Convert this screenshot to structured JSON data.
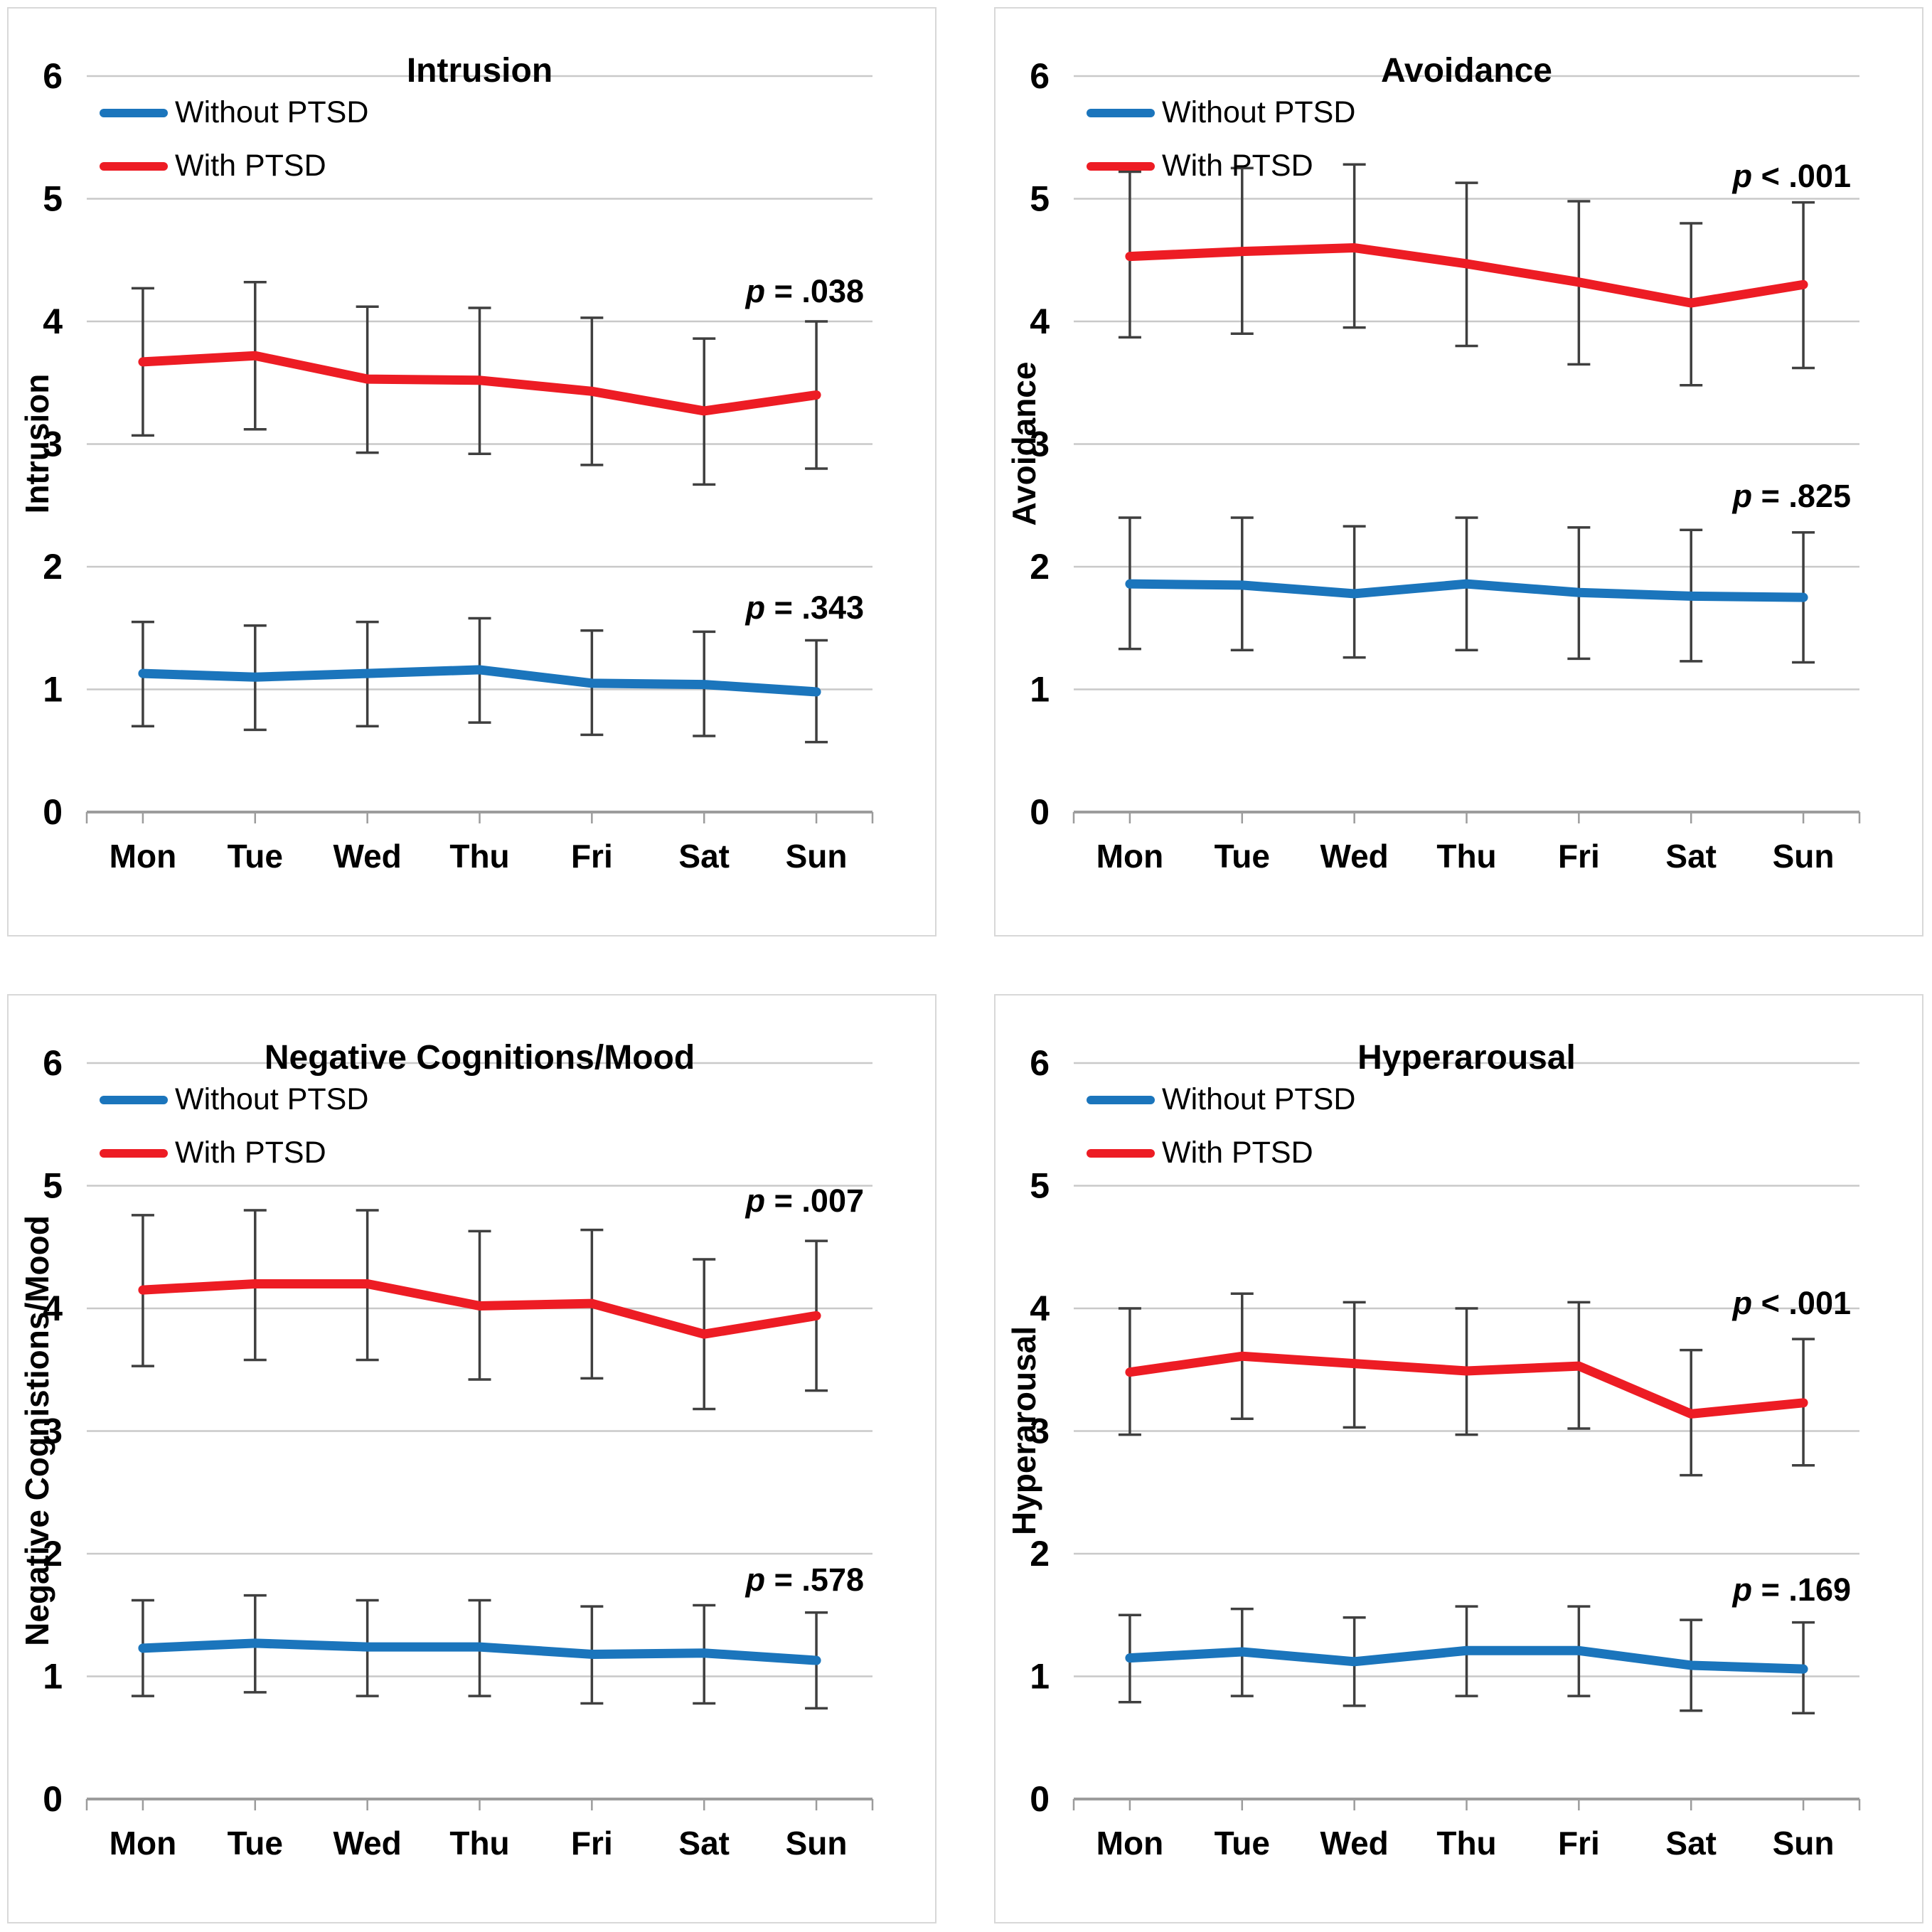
{
  "legend": {
    "without_label": "Without PTSD",
    "with_label": "With PTSD"
  },
  "colors": {
    "without_ptsd": "#1b75bc",
    "with_ptsd": "#ed1c24",
    "gridline": "#c9c9c9",
    "axis": "#9c9c9c",
    "error_bar": "#3f3f3f",
    "panel_border": "#d8d8d8",
    "text": "#000000"
  },
  "chart_data": [
    {
      "type": "line",
      "title": "Intrusion",
      "ylabel": "Intrusion",
      "xlabel": "",
      "categories": [
        "Mon",
        "Tue",
        "Wed",
        "Thu",
        "Fri",
        "Sat",
        "Sun"
      ],
      "ylim": [
        0,
        6
      ],
      "y_ticks": [
        0,
        1,
        2,
        3,
        4,
        5,
        6
      ],
      "grid": true,
      "legend_position": "top-left",
      "series": [
        {
          "name": "Without PTSD",
          "color_key": "without_ptsd",
          "values": [
            1.13,
            1.1,
            1.13,
            1.16,
            1.05,
            1.04,
            0.98
          ],
          "err_low": [
            0.7,
            0.67,
            0.7,
            0.73,
            0.63,
            0.62,
            0.57
          ],
          "err_high": [
            1.55,
            1.52,
            1.55,
            1.58,
            1.48,
            1.47,
            1.4
          ],
          "p_label": "p = .343",
          "p_italic": "p",
          "p_text": " = .343",
          "p_y": 1.64
        },
        {
          "name": "With PTSD",
          "color_key": "with_ptsd",
          "values": [
            3.67,
            3.72,
            3.53,
            3.52,
            3.43,
            3.27,
            3.4
          ],
          "err_low": [
            3.07,
            3.12,
            2.93,
            2.92,
            2.83,
            2.67,
            2.8
          ],
          "err_high": [
            4.27,
            4.32,
            4.12,
            4.11,
            4.03,
            3.86,
            4.0
          ],
          "p_label": "p = .038",
          "p_italic": "p",
          "p_text": " = .038",
          "p_y": 4.22
        }
      ]
    },
    {
      "type": "line",
      "title": "Avoidance",
      "ylabel": "Avoidance",
      "xlabel": "",
      "categories": [
        "Mon",
        "Tue",
        "Wed",
        "Thu",
        "Fri",
        "Sat",
        "Sun"
      ],
      "ylim": [
        0,
        6
      ],
      "y_ticks": [
        0,
        1,
        2,
        3,
        4,
        5,
        6
      ],
      "grid": true,
      "legend_position": "top-left",
      "series": [
        {
          "name": "Without PTSD",
          "color_key": "without_ptsd",
          "values": [
            1.86,
            1.85,
            1.78,
            1.86,
            1.79,
            1.76,
            1.75
          ],
          "err_low": [
            1.33,
            1.32,
            1.26,
            1.32,
            1.25,
            1.23,
            1.22
          ],
          "err_high": [
            2.4,
            2.4,
            2.33,
            2.4,
            2.32,
            2.3,
            2.28
          ],
          "p_label": "p = .825",
          "p_italic": "p",
          "p_text": " = .825",
          "p_y": 2.55
        },
        {
          "name": "With PTSD",
          "color_key": "with_ptsd",
          "values": [
            4.53,
            4.57,
            4.6,
            4.47,
            4.32,
            4.15,
            4.3
          ],
          "err_low": [
            3.87,
            3.9,
            3.95,
            3.8,
            3.65,
            3.48,
            3.62
          ],
          "err_high": [
            5.22,
            5.25,
            5.28,
            5.13,
            4.98,
            4.8,
            4.97
          ],
          "p_label": "p < .001",
          "p_italic": "p",
          "p_text": " < .001",
          "p_y": 5.16
        }
      ]
    },
    {
      "type": "line",
      "title": "Negative Cognitions/Mood",
      "ylabel": "Negative Cognistions/Mood",
      "xlabel": "",
      "categories": [
        "Mon",
        "Tue",
        "Wed",
        "Thu",
        "Fri",
        "Sat",
        "Sun"
      ],
      "ylim": [
        0,
        6
      ],
      "y_ticks": [
        0,
        1,
        2,
        3,
        4,
        5,
        6
      ],
      "grid": true,
      "legend_position": "top-left",
      "series": [
        {
          "name": "Without PTSD",
          "color_key": "without_ptsd",
          "values": [
            1.23,
            1.27,
            1.24,
            1.24,
            1.18,
            1.19,
            1.13
          ],
          "err_low": [
            0.84,
            0.87,
            0.84,
            0.84,
            0.78,
            0.78,
            0.74
          ],
          "err_high": [
            1.62,
            1.66,
            1.62,
            1.62,
            1.57,
            1.58,
            1.52
          ],
          "p_label": "p = .578",
          "p_italic": "p",
          "p_text": " = .578",
          "p_y": 1.76
        },
        {
          "name": "With PTSD",
          "color_key": "with_ptsd",
          "values": [
            4.15,
            4.2,
            4.2,
            4.02,
            4.04,
            3.79,
            3.94
          ],
          "err_low": [
            3.53,
            3.58,
            3.58,
            3.42,
            3.43,
            3.18,
            3.33
          ],
          "err_high": [
            4.76,
            4.8,
            4.8,
            4.63,
            4.64,
            4.4,
            4.55
          ],
          "p_label": "p = .007",
          "p_italic": "p",
          "p_text": " = .007",
          "p_y": 4.85
        }
      ]
    },
    {
      "type": "line",
      "title": "Hyperarousal",
      "ylabel": "Hyperarousal",
      "xlabel": "",
      "categories": [
        "Mon",
        "Tue",
        "Wed",
        "Thu",
        "Fri",
        "Sat",
        "Sun"
      ],
      "ylim": [
        0,
        6
      ],
      "y_ticks": [
        0,
        1,
        2,
        3,
        4,
        5,
        6
      ],
      "grid": true,
      "legend_position": "top-left",
      "series": [
        {
          "name": "Without PTSD",
          "color_key": "without_ptsd",
          "values": [
            1.15,
            1.2,
            1.12,
            1.21,
            1.21,
            1.09,
            1.06
          ],
          "err_low": [
            0.79,
            0.84,
            0.76,
            0.84,
            0.84,
            0.72,
            0.7
          ],
          "err_high": [
            1.5,
            1.55,
            1.48,
            1.57,
            1.57,
            1.46,
            1.44
          ],
          "p_label": "p = .169",
          "p_italic": "p",
          "p_text": " = .169",
          "p_y": 1.68
        },
        {
          "name": "With PTSD",
          "color_key": "with_ptsd",
          "values": [
            3.48,
            3.61,
            3.55,
            3.49,
            3.53,
            3.14,
            3.23
          ],
          "err_low": [
            2.97,
            3.1,
            3.03,
            2.97,
            3.02,
            2.64,
            2.72
          ],
          "err_high": [
            4.0,
            4.12,
            4.05,
            4.0,
            4.05,
            3.66,
            3.75
          ],
          "p_label": "p < .001",
          "p_italic": "p",
          "p_text": " < .001",
          "p_y": 4.02
        }
      ]
    }
  ]
}
